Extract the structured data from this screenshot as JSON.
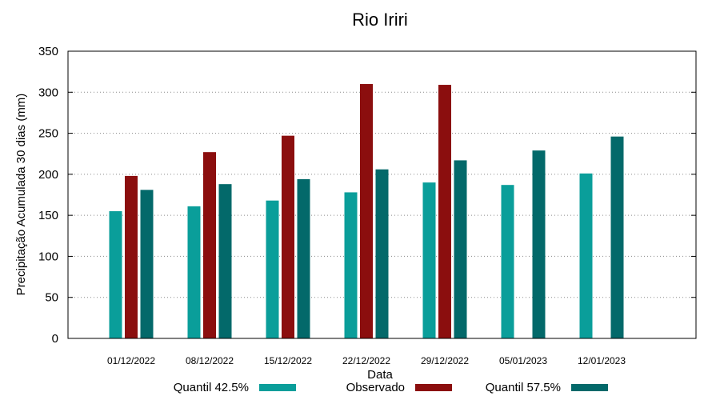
{
  "chart_data": {
    "type": "bar",
    "title": "Rio Iriri",
    "xlabel": "Data",
    "ylabel": "Precipitação Acumulada 30 dias (mm)",
    "ylim": [
      0,
      350
    ],
    "yticks": [
      0,
      50,
      100,
      150,
      200,
      250,
      300,
      350
    ],
    "grid": true,
    "legend_position": "bottom",
    "categories": [
      "01/12/2022",
      "08/12/2022",
      "15/12/2022",
      "22/12/2022",
      "29/12/2022",
      "05/01/2023",
      "12/01/2023"
    ],
    "series": [
      {
        "name": "Quantil 42.5%",
        "color": "#0a9e9a",
        "values": [
          155,
          161,
          168,
          178,
          190,
          187,
          201
        ]
      },
      {
        "name": "Observado",
        "color": "#8b0e0e",
        "values": [
          198,
          227,
          247,
          310,
          309,
          null,
          null
        ]
      },
      {
        "name": "Quantil 57.5%",
        "color": "#03696a",
        "values": [
          181,
          188,
          194,
          206,
          217,
          229,
          246
        ]
      }
    ]
  }
}
